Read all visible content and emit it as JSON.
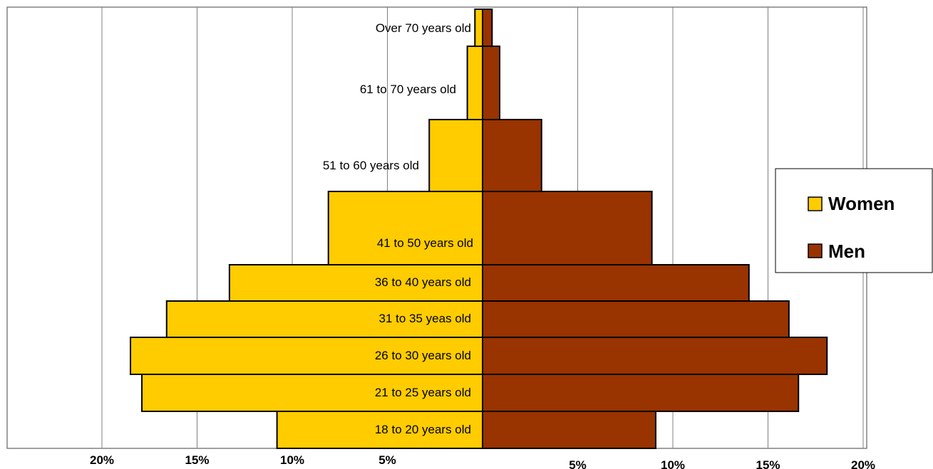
{
  "chart_data": {
    "type": "bar",
    "orientation": "horizontal-diverging",
    "categories": [
      "18 to 20 years old",
      "21 to 25 years old",
      "26 to 30 years old",
      "31 to 35 yeas old",
      "36 to 40 years old",
      "41 to 50 years old",
      "51 to 60 years old",
      "61 to 70 years old",
      "Over 70 years old"
    ],
    "series": [
      {
        "name": "Women",
        "color": "#FFCC00",
        "side": "left",
        "values": [
          10.8,
          17.9,
          18.5,
          16.6,
          13.3,
          8.1,
          2.8,
          0.8,
          0.4
        ]
      },
      {
        "name": "Men",
        "color": "#993300",
        "side": "right",
        "values": [
          9.1,
          16.6,
          18.1,
          16.1,
          14.0,
          8.9,
          3.1,
          0.9,
          0.5
        ]
      }
    ],
    "xlim": [
      -20,
      20
    ],
    "x_ticks": [
      {
        "value": -20,
        "label": "20%"
      },
      {
        "value": -15,
        "label": "15%"
      },
      {
        "value": -10,
        "label": "10%"
      },
      {
        "value": -5,
        "label": "5%"
      },
      {
        "value": 5,
        "label": "5%"
      },
      {
        "value": 10,
        "label": "10%"
      },
      {
        "value": 15,
        "label": "15%"
      },
      {
        "value": 20,
        "label": "20%"
      }
    ],
    "grid": "vertical",
    "legend_position": "right",
    "title": "",
    "xlabel": "",
    "ylabel": ""
  }
}
